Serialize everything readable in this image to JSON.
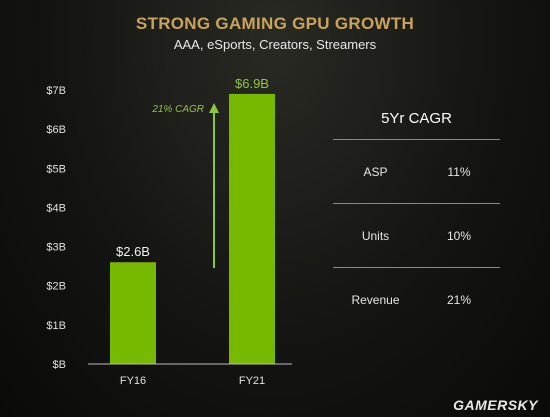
{
  "title": "STRONG GAMING GPU GROWTH",
  "subtitle": "AAA, eSports, Creators, Streamers",
  "chart_data": {
    "type": "bar",
    "categories": [
      "FY16",
      "FY21"
    ],
    "values": [
      2.6,
      6.9
    ],
    "data_labels": [
      "$2.6B",
      "$6.9B"
    ],
    "ylim": [
      0,
      7
    ],
    "yticks": [
      "$B",
      "$1B",
      "$2B",
      "$3B",
      "$4B",
      "$5B",
      "$6B",
      "$7B"
    ],
    "grid": false,
    "bar_color": "#76b900",
    "annotation": "21% CAGR"
  },
  "cagr_table": {
    "title": "5Yr CAGR",
    "rows": [
      {
        "label": "ASP",
        "value": "11%"
      },
      {
        "label": "Units",
        "value": "10%"
      },
      {
        "label": "Revenue",
        "value": "21%"
      }
    ]
  },
  "watermark": "GAMERSKY",
  "colors": {
    "title": "#c8a35a",
    "accent_green": "#76b900",
    "annotation_green": "#8cc63f"
  }
}
